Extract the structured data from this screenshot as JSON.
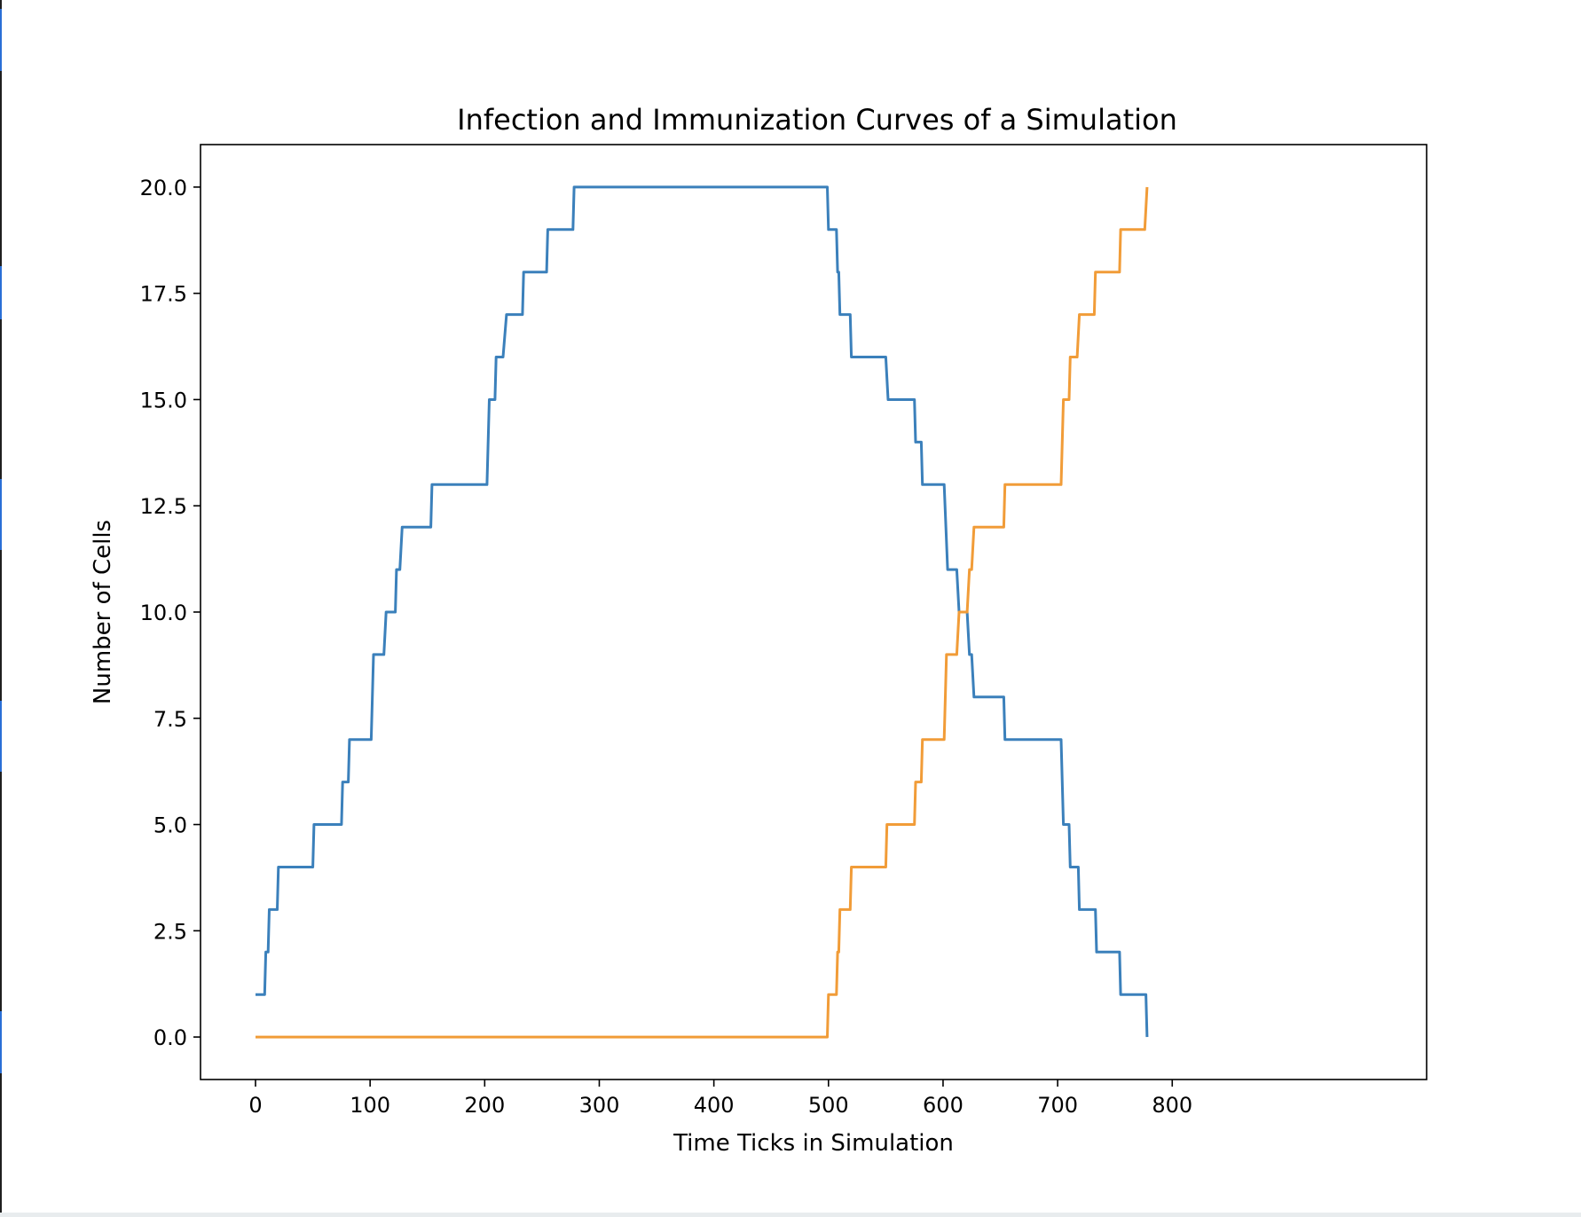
{
  "chart_data": {
    "type": "line",
    "title": "Infection and Immunization Curves of a Simulation",
    "xlabel": "Time Ticks in Simulation",
    "ylabel": "Number of Cells",
    "xlim": [
      -48,
      1022
    ],
    "ylim": [
      -1,
      21
    ],
    "xticks": [
      0,
      100,
      200,
      300,
      400,
      500,
      600,
      700,
      800
    ],
    "xtick_labels": [
      "0",
      "100",
      "200",
      "300",
      "400",
      "500",
      "600",
      "700",
      "800"
    ],
    "yticks": [
      0,
      2.5,
      5,
      7.5,
      10,
      12.5,
      15,
      17.5,
      20
    ],
    "ytick_labels": [
      "0.0",
      "2.5",
      "5.0",
      "7.5",
      "10.0",
      "12.5",
      "15.0",
      "17.5",
      "20.0"
    ],
    "grid": false,
    "legend": "none",
    "series": [
      {
        "color": "#3b80bb",
        "points": [
          [
            0,
            1
          ],
          [
            8,
            1
          ],
          [
            9,
            2
          ],
          [
            11,
            2
          ],
          [
            12,
            3
          ],
          [
            19,
            3
          ],
          [
            20,
            4
          ],
          [
            50,
            4
          ],
          [
            51,
            5
          ],
          [
            75,
            5
          ],
          [
            76,
            6
          ],
          [
            81,
            6
          ],
          [
            82,
            7
          ],
          [
            101,
            7
          ],
          [
            103,
            9
          ],
          [
            112,
            9
          ],
          [
            114,
            10
          ],
          [
            122,
            10
          ],
          [
            123,
            11
          ],
          [
            126,
            11
          ],
          [
            128,
            12
          ],
          [
            153,
            12
          ],
          [
            154,
            13
          ],
          [
            202,
            13
          ],
          [
            204,
            15
          ],
          [
            209,
            15
          ],
          [
            210,
            16
          ],
          [
            216,
            16
          ],
          [
            219,
            17
          ],
          [
            233,
            17
          ],
          [
            234,
            18
          ],
          [
            254,
            18
          ],
          [
            255,
            19
          ],
          [
            277,
            19
          ],
          [
            278,
            20
          ],
          [
            499,
            20
          ],
          [
            500,
            19
          ],
          [
            507,
            19
          ],
          [
            508,
            18
          ],
          [
            509,
            18
          ],
          [
            510,
            17
          ],
          [
            519,
            17
          ],
          [
            520,
            16
          ],
          [
            550,
            16
          ],
          [
            552,
            15
          ],
          [
            575,
            15
          ],
          [
            576,
            14
          ],
          [
            581,
            14
          ],
          [
            582,
            13
          ],
          [
            601,
            13
          ],
          [
            604,
            11
          ],
          [
            612,
            11
          ],
          [
            614,
            10
          ],
          [
            621,
            10
          ],
          [
            623,
            9
          ],
          [
            625,
            9
          ],
          [
            627,
            8
          ],
          [
            653,
            8
          ],
          [
            654,
            7
          ],
          [
            703,
            7
          ],
          [
            705,
            5
          ],
          [
            710,
            5
          ],
          [
            711,
            4
          ],
          [
            718,
            4
          ],
          [
            719,
            3
          ],
          [
            733,
            3
          ],
          [
            734,
            2
          ],
          [
            754,
            2
          ],
          [
            755,
            1
          ],
          [
            777,
            1
          ],
          [
            778,
            0
          ]
        ]
      },
      {
        "color": "#f19c38",
        "points": [
          [
            0,
            0
          ],
          [
            499,
            0
          ],
          [
            500,
            1
          ],
          [
            507,
            1
          ],
          [
            508,
            2
          ],
          [
            509,
            2
          ],
          [
            510,
            3
          ],
          [
            519,
            3
          ],
          [
            520,
            4
          ],
          [
            550,
            4
          ],
          [
            551,
            5
          ],
          [
            575,
            5
          ],
          [
            576,
            6
          ],
          [
            581,
            6
          ],
          [
            582,
            7
          ],
          [
            601,
            7
          ],
          [
            603,
            9
          ],
          [
            612,
            9
          ],
          [
            614,
            10
          ],
          [
            621,
            10
          ],
          [
            623,
            11
          ],
          [
            625,
            11
          ],
          [
            627,
            12
          ],
          [
            653,
            12
          ],
          [
            654,
            13
          ],
          [
            703,
            13
          ],
          [
            705,
            15
          ],
          [
            710,
            15
          ],
          [
            711,
            16
          ],
          [
            717,
            16
          ],
          [
            719,
            17
          ],
          [
            732,
            17
          ],
          [
            733,
            18
          ],
          [
            754,
            18
          ],
          [
            755,
            19
          ],
          [
            776,
            19
          ],
          [
            778,
            20
          ]
        ]
      }
    ]
  }
}
